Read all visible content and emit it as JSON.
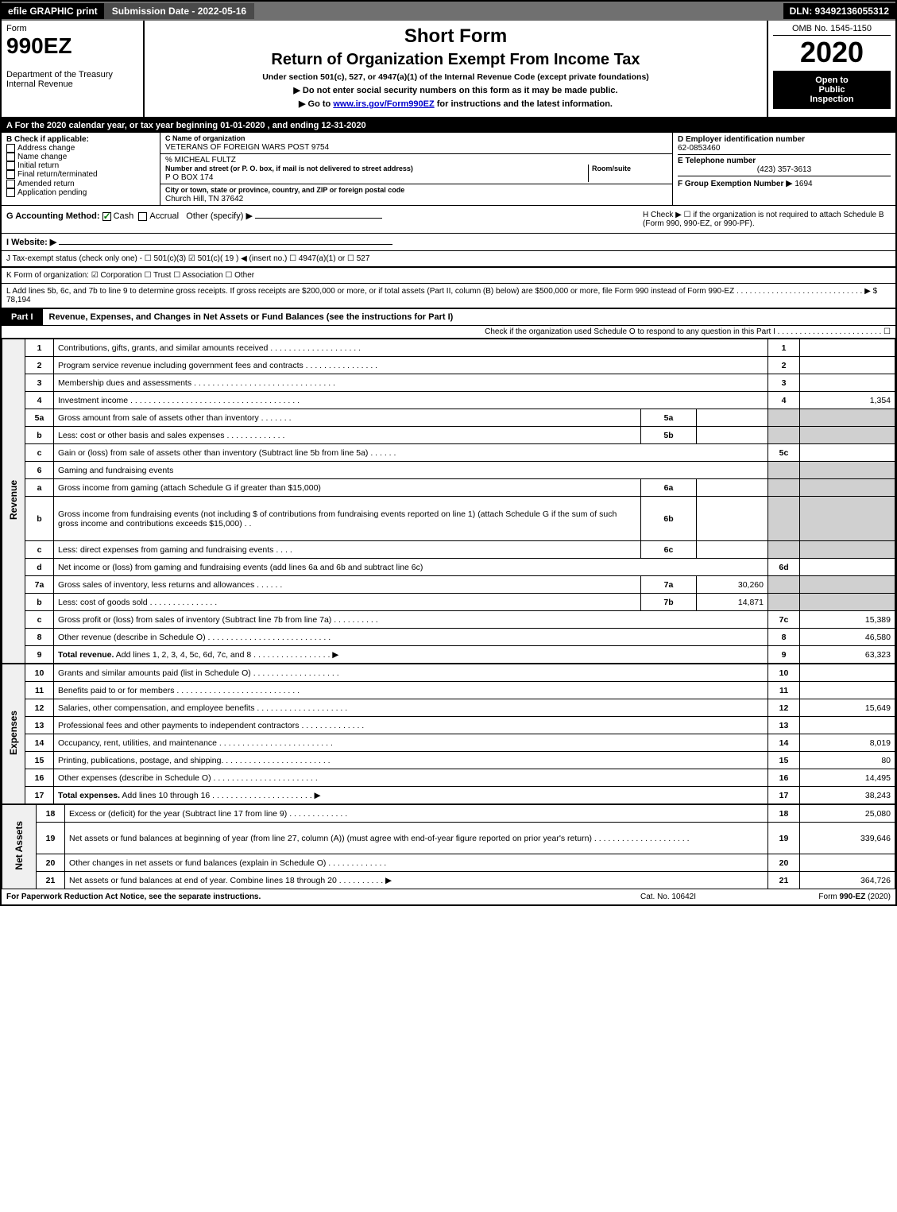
{
  "topbar": {
    "efile": "efile GRAPHIC print",
    "submission": "Submission Date - 2022-05-16",
    "dln": "DLN: 93492136055312"
  },
  "header": {
    "form_label": "Form",
    "form_number": "990EZ",
    "dept": "Department of the Treasury",
    "irs": "Internal Revenue",
    "short_form": "Short Form",
    "title": "Return of Organization Exempt From Income Tax",
    "subtitle": "Under section 501(c), 527, or 4947(a)(1) of the Internal Revenue Code (except private foundations)",
    "warn": "▶ Do not enter social security numbers on this form as it may be made public.",
    "goto_pre": "▶ Go to ",
    "goto_link": "www.irs.gov/Form990EZ",
    "goto_post": " for instructions and the latest information.",
    "omb": "OMB No. 1545-1150",
    "year": "2020",
    "open1": "Open to",
    "open2": "Public",
    "open3": "Inspection"
  },
  "sectionA": "A For the 2020 calendar year, or tax year beginning 01-01-2020 , and ending 12-31-2020",
  "blockB": {
    "title": "B Check if applicable:",
    "items": [
      "Address change",
      "Name change",
      "Initial return",
      "Final return/terminated",
      "Amended return",
      "Application pending"
    ]
  },
  "blockC": {
    "c_label": "C Name of organization",
    "org_name": "VETERANS OF FOREIGN WARS POST 9754",
    "care_of": "% MICHEAL FULTZ",
    "addr_label": "Number and street (or P. O. box, if mail is not delivered to street address)",
    "room_label": "Room/suite",
    "addr": "P O BOX 174",
    "city_label": "City or town, state or province, country, and ZIP or foreign postal code",
    "city": "Church Hill, TN  37642"
  },
  "blockD": {
    "d_label": "D Employer identification number",
    "ein": "62-0853460",
    "e_label": "E Telephone number",
    "phone": "(423) 357-3613",
    "f_label": "F Group Exemption Number",
    "f_arrow": "▶",
    "f_val": "1694"
  },
  "lineG": {
    "label": "G Accounting Method:",
    "cash": "Cash",
    "accrual": "Accrual",
    "other": "Other (specify) ▶"
  },
  "lineH": "H  Check ▶  ☐  if the organization is not required to attach Schedule B (Form 990, 990-EZ, or 990-PF).",
  "lineI": "I Website: ▶",
  "lineJ": "J Tax-exempt status (check only one) - ☐ 501(c)(3)  ☑ 501(c)( 19 ) ◀ (insert no.)  ☐ 4947(a)(1) or  ☐ 527",
  "lineK": "K Form of organization:  ☑ Corporation  ☐ Trust  ☐ Association  ☐ Other",
  "lineL": "L Add lines 5b, 6c, and 7b to line 9 to determine gross receipts. If gross receipts are $200,000 or more, or if total assets (Part II, column (B) below) are $500,000 or more, file Form 990 instead of Form 990-EZ . . . . . . . . . . . . . . . . . . . . . . . . . . . . . ▶ $ 78,194",
  "partI": {
    "tag": "Part I",
    "title": "Revenue, Expenses, and Changes in Net Assets or Fund Balances (see the instructions for Part I)",
    "check": "Check if the organization used Schedule O to respond to any question in this Part I . . . . . . . . . . . . . . . . . . . . . . . . ☐"
  },
  "sections": {
    "revenue": "Revenue",
    "expenses": "Expenses",
    "netassets": "Net Assets"
  },
  "rows": [
    {
      "n": "1",
      "d": "Contributions, gifts, grants, and similar amounts received . . . . . . . . . . . . . . . . . . . .",
      "r": "1",
      "a": ""
    },
    {
      "n": "2",
      "d": "Program service revenue including government fees and contracts . . . . . . . . . . . . . . . .",
      "r": "2",
      "a": ""
    },
    {
      "n": "3",
      "d": "Membership dues and assessments . . . . . . . . . . . . . . . . . . . . . . . . . . . . . . .",
      "r": "3",
      "a": ""
    },
    {
      "n": "4",
      "d": "Investment income . . . . . . . . . . . . . . . . . . . . . . . . . . . . . . . . . . . . .",
      "r": "4",
      "a": "1,354"
    },
    {
      "n": "5a",
      "d": "Gross amount from sale of assets other than inventory . . . . . . .",
      "sn": "5a",
      "sv": "",
      "gray": true
    },
    {
      "n": "b",
      "d": "Less: cost or other basis and sales expenses . . . . . . . . . . . . .",
      "sn": "5b",
      "sv": "",
      "gray": true
    },
    {
      "n": "c",
      "d": "Gain or (loss) from sale of assets other than inventory (Subtract line 5b from line 5a) . . . . . .",
      "r": "5c",
      "a": ""
    },
    {
      "n": "6",
      "d": "Gaming and fundraising events",
      "plain": true,
      "gray": true
    },
    {
      "n": "a",
      "d": "Gross income from gaming (attach Schedule G if greater than $15,000)",
      "sn": "6a",
      "sv": "",
      "gray": true
    },
    {
      "n": "b",
      "d": "Gross income from fundraising events (not including $                     of contributions from fundraising events reported on line 1) (attach Schedule G if the sum of such gross income and contributions exceeds $15,000)   . .",
      "sn": "6b",
      "sv": "",
      "gray": true,
      "tall": true
    },
    {
      "n": "c",
      "d": "Less: direct expenses from gaming and fundraising events    . . . .",
      "sn": "6c",
      "sv": "",
      "gray": true
    },
    {
      "n": "d",
      "d": "Net income or (loss) from gaming and fundraising events (add lines 6a and 6b and subtract line 6c)",
      "r": "6d",
      "a": ""
    },
    {
      "n": "7a",
      "d": "Gross sales of inventory, less returns and allowances . . . . . .",
      "sn": "7a",
      "sv": "30,260",
      "gray": true
    },
    {
      "n": "b",
      "d": "Less: cost of goods sold        . . . . . . . . . . . . . . .",
      "sn": "7b",
      "sv": "14,871",
      "gray": true
    },
    {
      "n": "c",
      "d": "Gross profit or (loss) from sales of inventory (Subtract line 7b from line 7a) . . . . . . . . . .",
      "r": "7c",
      "a": "15,389"
    },
    {
      "n": "8",
      "d": "Other revenue (describe in Schedule O) . . . . . . . . . . . . . . . . . . . . . . . . . . .",
      "r": "8",
      "a": "46,580"
    },
    {
      "n": "9",
      "d": "Total revenue. Add lines 1, 2, 3, 4, 5c, 6d, 7c, and 8  . . . . . . . . . . . . . . . . .       ▶",
      "r": "9",
      "a": "63,323",
      "bold": true
    }
  ],
  "exp_rows": [
    {
      "n": "10",
      "d": "Grants and similar amounts paid (list in Schedule O) . . . . . . . . . . . . . . . . . . .",
      "r": "10",
      "a": ""
    },
    {
      "n": "11",
      "d": "Benefits paid to or for members       . . . . . . . . . . . . . . . . . . . . . . . . . . .",
      "r": "11",
      "a": ""
    },
    {
      "n": "12",
      "d": "Salaries, other compensation, and employee benefits . . . . . . . . . . . . . . . . . . . .",
      "r": "12",
      "a": "15,649"
    },
    {
      "n": "13",
      "d": "Professional fees and other payments to independent contractors . . . . . . . . . . . . . .",
      "r": "13",
      "a": ""
    },
    {
      "n": "14",
      "d": "Occupancy, rent, utilities, and maintenance . . . . . . . . . . . . . . . . . . . . . . . . .",
      "r": "14",
      "a": "8,019"
    },
    {
      "n": "15",
      "d": "Printing, publications, postage, and shipping. . . . . . . . . . . . . . . . . . . . . . . .",
      "r": "15",
      "a": "80"
    },
    {
      "n": "16",
      "d": "Other expenses (describe in Schedule O)      . . . . . . . . . . . . . . . . . . . . . . .",
      "r": "16",
      "a": "14,495"
    },
    {
      "n": "17",
      "d": "Total expenses. Add lines 10 through 16      . . . . . . . . . . . . . . . . . . . . . .   ▶",
      "r": "17",
      "a": "38,243",
      "bold": true
    }
  ],
  "na_rows": [
    {
      "n": "18",
      "d": "Excess or (deficit) for the year (Subtract line 17 from line 9)        . . . . . . . . . . . . .",
      "r": "18",
      "a": "25,080"
    },
    {
      "n": "19",
      "d": "Net assets or fund balances at beginning of year (from line 27, column (A)) (must agree with end-of-year figure reported on prior year's return) . . . . . . . . . . . . . . . . . . . . .",
      "r": "19",
      "a": "339,646",
      "tall": true
    },
    {
      "n": "20",
      "d": "Other changes in net assets or fund balances (explain in Schedule O) . . . . . . . . . . . . .",
      "r": "20",
      "a": ""
    },
    {
      "n": "21",
      "d": "Net assets or fund balances at end of year. Combine lines 18 through 20 . . . . . . . . . .   ▶",
      "r": "21",
      "a": "364,726"
    }
  ],
  "footer": {
    "left": "For Paperwork Reduction Act Notice, see the separate instructions.",
    "mid": "Cat. No. 10642I",
    "right_pre": "Form ",
    "right_bold": "990-EZ",
    "right_post": " (2020)"
  }
}
